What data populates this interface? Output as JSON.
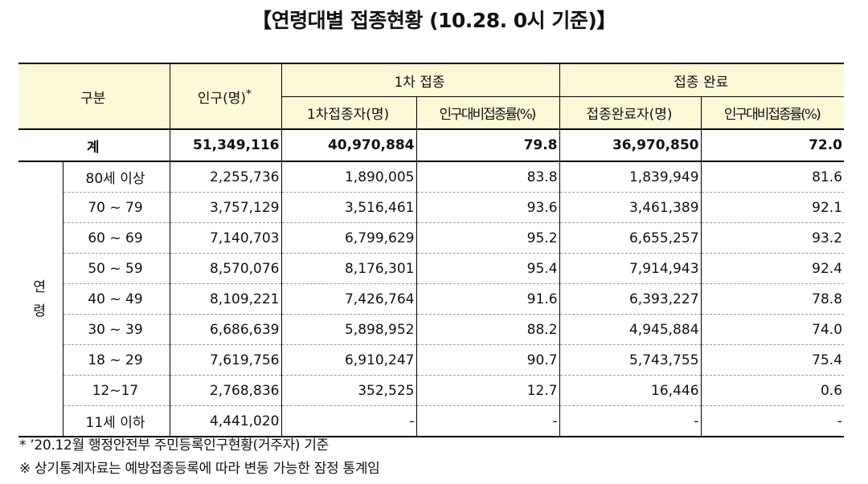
{
  "title": "【연령대별 접종현황 (10.28. 0시 기준)】",
  "header": {
    "category": "구분",
    "population": "인구(명)",
    "population_mark": "*",
    "first_dose": "1차 접종",
    "completed": "접종 완료",
    "first_dose_count": "1차접종자(명)",
    "first_dose_rate": "인구대비접종률(%)",
    "completed_count": "접종완료자(명)",
    "completed_rate": "인구대비접종률(%)"
  },
  "total": {
    "label": "계",
    "population": "51,349,116",
    "first_dose_count": "40,970,884",
    "first_dose_rate": "79.8",
    "completed_count": "36,970,850",
    "completed_rate": "72.0"
  },
  "age_label_1": "연",
  "age_label_2": "령",
  "rows": [
    {
      "age": "80세 이상",
      "population": "2,255,736",
      "first_dose_count": "1,890,005",
      "first_dose_rate": "83.8",
      "completed_count": "1,839,949",
      "completed_rate": "81.6"
    },
    {
      "age": "70 ~ 79",
      "population": "3,757,129",
      "first_dose_count": "3,516,461",
      "first_dose_rate": "93.6",
      "completed_count": "3,461,389",
      "completed_rate": "92.1"
    },
    {
      "age": "60 ~ 69",
      "population": "7,140,703",
      "first_dose_count": "6,799,629",
      "first_dose_rate": "95.2",
      "completed_count": "6,655,257",
      "completed_rate": "93.2"
    },
    {
      "age": "50 ~ 59",
      "population": "8,570,076",
      "first_dose_count": "8,176,301",
      "first_dose_rate": "95.4",
      "completed_count": "7,914,943",
      "completed_rate": "92.4"
    },
    {
      "age": "40 ~ 49",
      "population": "8,109,221",
      "first_dose_count": "7,426,764",
      "first_dose_rate": "91.6",
      "completed_count": "6,393,227",
      "completed_rate": "78.8"
    },
    {
      "age": "30 ~ 39",
      "population": "6,686,639",
      "first_dose_count": "5,898,952",
      "first_dose_rate": "88.2",
      "completed_count": "4,945,884",
      "completed_rate": "74.0"
    },
    {
      "age": "18 ~ 29",
      "population": "7,619,756",
      "first_dose_count": "6,910,247",
      "first_dose_rate": "90.7",
      "completed_count": "5,743,755",
      "completed_rate": "75.4"
    },
    {
      "age": "12~17",
      "population": "2,768,836",
      "first_dose_count": "352,525",
      "first_dose_rate": "12.7",
      "completed_count": "16,446",
      "completed_rate": "0.6"
    },
    {
      "age": "11세 이하",
      "population": "4,441,020",
      "first_dose_count": "-",
      "first_dose_rate": "-",
      "completed_count": "-",
      "completed_rate": "-"
    }
  ],
  "notes": [
    "* ’20.12월 행정안전부 주민등록인구현황(거주자) 기준",
    "※ 상기통계자료는 예방접종등록에 따라 변동 가능한 잠정 통계임"
  ]
}
